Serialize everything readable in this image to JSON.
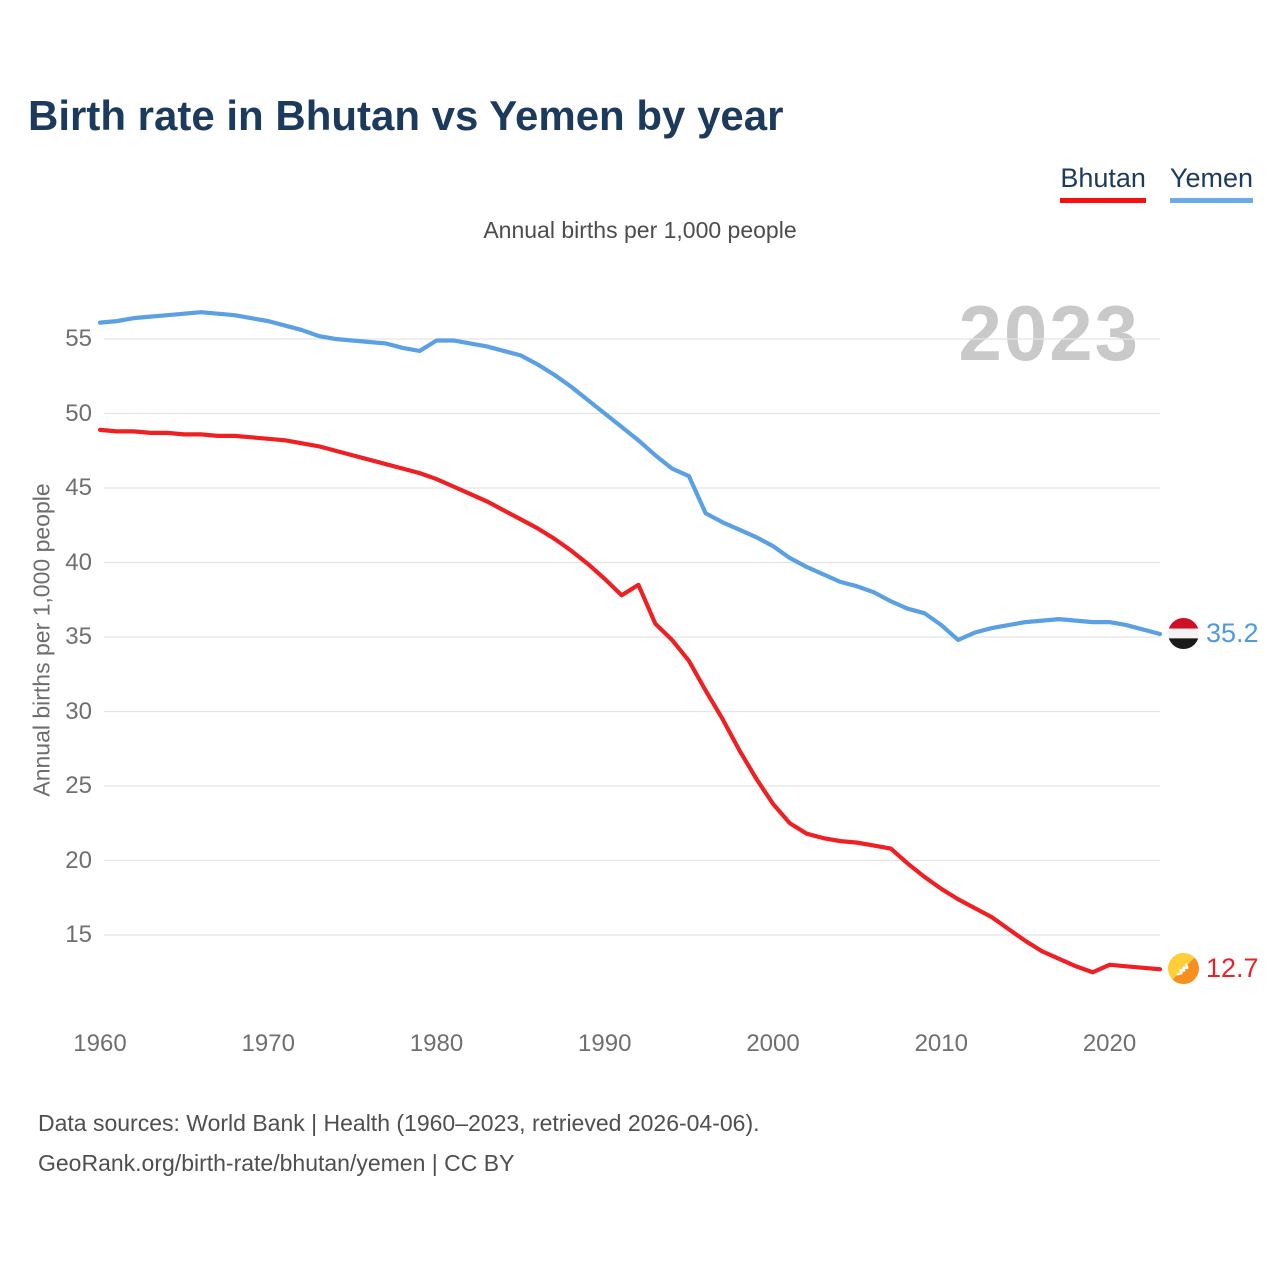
{
  "page": {
    "title": "Birth rate in Bhutan vs Yemen by year",
    "subtitle": "Annual births per 1,000 people",
    "watermark": "2023",
    "footer_line1": "Data sources: World Bank | Health (1960–2023, retrieved 2026-04-06).",
    "footer_line2": "GeoRank.org/birth-rate/bhutan/yemen | CC BY"
  },
  "legend": {
    "items": [
      {
        "label": "Bhutan",
        "color": "#f50f0f"
      },
      {
        "label": "Yemen",
        "color": "#6cabe9"
      }
    ]
  },
  "colors": {
    "title_navy": "#1b3a5c",
    "bhutan_red": "#ee2024",
    "yemen_blue": "#5aa0e2",
    "gridline": "#e4e4e4",
    "tick_gray": "#6f6f6f",
    "watermark_gray": "#c9c9c9"
  },
  "chart_data": {
    "type": "line",
    "title": "Birth rate in Bhutan vs Yemen by year",
    "xlabel": "",
    "ylabel": "Annual births per 1,000 people",
    "ylim": [
      12,
      58
    ],
    "xlim": [
      1960,
      2023
    ],
    "grid": "horizontal-only",
    "legend_position": "top-right",
    "xticks": [
      1960,
      1970,
      1980,
      1990,
      2000,
      2010,
      2020
    ],
    "yticks": [
      15,
      20,
      25,
      30,
      35,
      40,
      45,
      50,
      55
    ],
    "x": [
      1960,
      1961,
      1962,
      1963,
      1964,
      1965,
      1966,
      1967,
      1968,
      1969,
      1970,
      1971,
      1972,
      1973,
      1974,
      1975,
      1976,
      1977,
      1978,
      1979,
      1980,
      1981,
      1982,
      1983,
      1984,
      1985,
      1986,
      1987,
      1988,
      1989,
      1990,
      1991,
      1992,
      1993,
      1994,
      1995,
      1996,
      1997,
      1998,
      1999,
      2000,
      2001,
      2002,
      2003,
      2004,
      2005,
      2006,
      2007,
      2008,
      2009,
      2010,
      2011,
      2012,
      2013,
      2014,
      2015,
      2016,
      2017,
      2018,
      2019,
      2020,
      2021,
      2022,
      2023
    ],
    "series": [
      {
        "name": "Bhutan",
        "color": "#ee2024",
        "end_label": "12.7",
        "values": [
          48.9,
          48.8,
          48.8,
          48.7,
          48.7,
          48.6,
          48.6,
          48.5,
          48.5,
          48.4,
          48.3,
          48.2,
          48.0,
          47.8,
          47.5,
          47.2,
          46.9,
          46.6,
          46.3,
          46.0,
          45.6,
          45.1,
          44.6,
          44.1,
          43.5,
          42.9,
          42.3,
          41.6,
          40.8,
          39.9,
          38.9,
          37.8,
          38.5,
          35.9,
          34.8,
          33.4,
          31.4,
          29.5,
          27.4,
          25.5,
          23.8,
          22.5,
          21.8,
          21.5,
          21.3,
          21.2,
          21.0,
          20.8,
          19.8,
          18.9,
          18.1,
          17.4,
          16.8,
          16.2,
          15.4,
          14.6,
          13.9,
          13.4,
          12.9,
          12.5,
          13.0,
          12.9,
          12.8,
          12.7
        ]
      },
      {
        "name": "Yemen",
        "color": "#5aa0e2",
        "end_label": "35.2",
        "values": [
          56.1,
          56.2,
          56.4,
          56.5,
          56.6,
          56.7,
          56.8,
          56.7,
          56.6,
          56.4,
          56.2,
          55.9,
          55.6,
          55.2,
          55.0,
          54.9,
          54.8,
          54.7,
          54.4,
          54.2,
          54.9,
          54.9,
          54.7,
          54.5,
          54.2,
          53.9,
          53.3,
          52.6,
          51.8,
          50.9,
          50.0,
          49.1,
          48.2,
          47.2,
          46.3,
          45.8,
          43.3,
          42.7,
          42.2,
          41.7,
          41.1,
          40.3,
          39.7,
          39.2,
          38.7,
          38.4,
          38.0,
          37.4,
          36.9,
          36.6,
          35.8,
          34.8,
          35.3,
          35.6,
          35.8,
          36.0,
          36.1,
          36.2,
          36.1,
          36.0,
          36.0,
          35.8,
          35.5,
          35.2
        ]
      }
    ]
  }
}
